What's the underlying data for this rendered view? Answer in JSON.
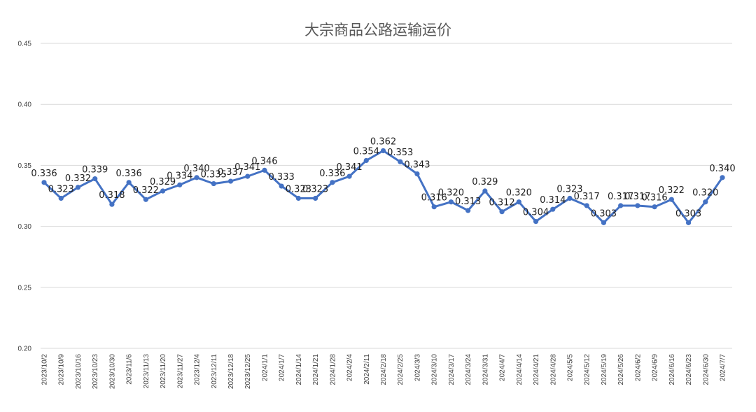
{
  "chart_data": {
    "type": "line",
    "title": "大宗商品公路运输运价",
    "xlabel": "",
    "ylabel": "",
    "ylim": [
      0.2,
      0.45
    ],
    "yticks": [
      "0.20",
      "0.25",
      "0.30",
      "0.35",
      "0.40",
      "0.45"
    ],
    "grid": true,
    "legend": "none",
    "categories": [
      "2023/10/2",
      "2023/10/9",
      "2023/10/16",
      "2023/10/23",
      "2023/10/30",
      "2023/11/6",
      "2023/11/13",
      "2023/11/20",
      "2023/11/27",
      "2023/12/4",
      "2023/12/11",
      "2023/12/18",
      "2023/12/25",
      "2024/1/1",
      "2024/1/7",
      "2024/1/14",
      "2024/1/21",
      "2024/1/28",
      "2024/2/4",
      "2024/2/11",
      "2024/2/18",
      "2024/2/25",
      "2024/3/3",
      "2024/3/10",
      "2024/3/17",
      "2024/3/24",
      "2024/3/31",
      "2024/4/7",
      "2024/4/14",
      "2024/4/21",
      "2024/4/28",
      "2024/5/5",
      "2024/5/12",
      "2024/5/19",
      "2024/5/26",
      "2024/6/2",
      "2024/6/9",
      "2024/6/16",
      "2024/6/23",
      "2024/6/30",
      "2024/7/7"
    ],
    "series": [
      {
        "values": [
          0.336,
          0.323,
          0.332,
          0.339,
          0.318,
          0.336,
          0.322,
          0.329,
          0.334,
          0.34,
          0.335,
          0.337,
          0.341,
          0.346,
          0.333,
          0.323,
          0.323,
          0.336,
          0.341,
          0.354,
          0.362,
          0.353,
          0.343,
          0.316,
          0.32,
          0.313,
          0.329,
          0.312,
          0.32,
          0.304,
          0.314,
          0.323,
          0.317,
          0.303,
          0.317,
          0.317,
          0.316,
          0.322,
          0.303,
          0.32,
          0.34
        ],
        "labels": [
          "0.336",
          "0.323",
          "0.332",
          "0.339",
          "0.318",
          "0.336",
          "0.322",
          "0.329",
          "0.334",
          "0.340",
          "0.335",
          "0.337",
          "0.341",
          "0.346",
          "0.333",
          "0.323",
          "0.323",
          "0.336",
          "0.341",
          "0.354",
          "0.362",
          "0.353",
          "0.343",
          "0.316",
          "0.320",
          "0.313",
          "0.329",
          "0.312",
          "0.320",
          "0.304",
          "0.314",
          "0.323",
          "0.317",
          "0.303",
          "0.317",
          "0.317",
          "0.316",
          "0.322",
          "0.303",
          "0.320",
          "0.340"
        ],
        "color": "#4472c4"
      }
    ]
  }
}
